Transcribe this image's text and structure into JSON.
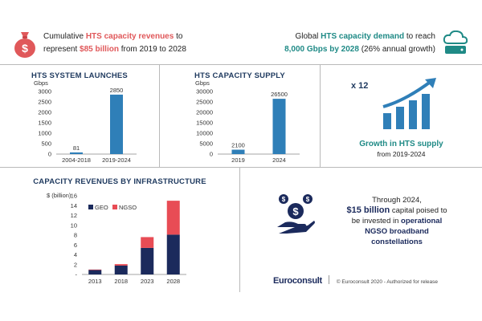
{
  "header_left": {
    "line1_pre": "Cumulative ",
    "line1_highlight": "HTS capacity revenues",
    "line1_post": " to",
    "line2_pre": "represent ",
    "line2_highlight": "$85 billion",
    "line2_post": " from 2019 to 2028",
    "icon": "money-bag-icon"
  },
  "header_right": {
    "line1_pre": "Global ",
    "line1_highlight": "HTS capacity demand",
    "line1_post": " to reach",
    "line2_highlight": "8,000 Gbps by 2028",
    "line2_post": " (26% annual growth)",
    "icon": "cloud-server-icon"
  },
  "growth_panel": {
    "multiplier": "x 12",
    "title": "Growth in HTS supply",
    "subtitle": "from 2019-2024",
    "icon": "growth-bars-arrow-icon"
  },
  "callout": {
    "line1": "Through 2024,",
    "line2_highlight": "$15 billion",
    "line2_post": " capital poised to",
    "line3_pre": "be invested in ",
    "line3_highlight": "operational",
    "line4": "NGSO broadband",
    "line5": "constellations",
    "icon": "hand-coins-icon"
  },
  "footer": {
    "logo": "Euroconsult",
    "copyright": "© Euroconsult 2020 - Authorized for release"
  },
  "colors": {
    "bar_blue": "#2f7fb8",
    "geo": "#1b2a5c",
    "ngso": "#e84c55",
    "red_text": "#e0585a",
    "teal_text": "#1f8a86"
  },
  "chart_data": [
    {
      "type": "bar",
      "title": "HTS SYSTEM LAUNCHES",
      "ylabel": "Gbps",
      "categories": [
        "2004-2018",
        "2019-2024"
      ],
      "values": [
        81,
        2850
      ],
      "data_labels": [
        "81",
        "2850"
      ],
      "ylim": [
        0,
        3000
      ],
      "yticks": [
        "0",
        "500",
        "1000",
        "1500",
        "2000",
        "2500",
        "3000"
      ],
      "ytick_values": [
        0,
        500,
        1000,
        1500,
        2000,
        2500,
        3000
      ],
      "grid": false
    },
    {
      "type": "bar",
      "title": "HTS CAPACITY SUPPLY",
      "ylabel": "Gbps",
      "categories": [
        "2019",
        "2024"
      ],
      "values": [
        2100,
        26500
      ],
      "data_labels": [
        "2100",
        "26500"
      ],
      "ylim": [
        0,
        30000
      ],
      "yticks": [
        "0",
        "5000",
        "10000",
        "15000",
        "20000",
        "25000",
        "30000"
      ],
      "ytick_values": [
        0,
        5000,
        10000,
        15000,
        20000,
        25000,
        30000
      ],
      "grid": false
    },
    {
      "type": "bar",
      "stacked": true,
      "title": "CAPACITY REVENUES BY INFRASTRUCTURE",
      "ylabel": "$ (billion)",
      "categories": [
        "2013",
        "2018",
        "2023",
        "2028"
      ],
      "series": [
        {
          "name": "GEO",
          "values": [
            0.9,
            1.8,
            5.4,
            8.1
          ]
        },
        {
          "name": "NGSO",
          "values": [
            0.1,
            0.3,
            2.2,
            6.9
          ]
        }
      ],
      "ylim": [
        0,
        16
      ],
      "yticks": [
        "-",
        "2",
        "4",
        "6",
        "8",
        "10",
        "12",
        "14",
        "16"
      ],
      "ytick_values": [
        0,
        2,
        4,
        6,
        8,
        10,
        12,
        14,
        16
      ],
      "legend_position": "top-left",
      "grid": false
    }
  ]
}
